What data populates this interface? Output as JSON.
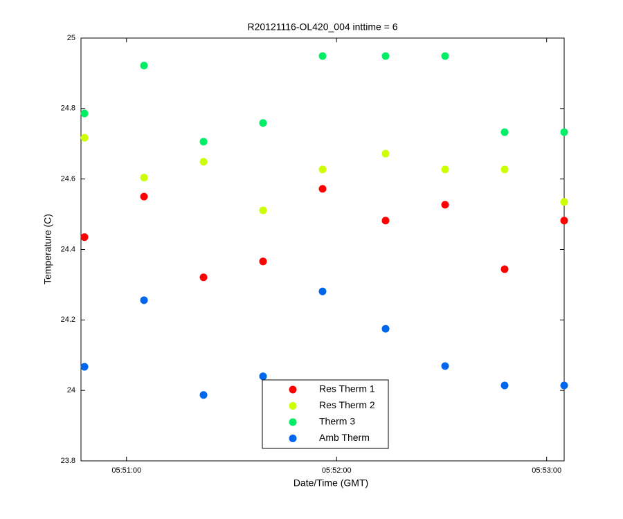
{
  "chart_data": {
    "type": "scatter",
    "title": "R20121116-OL420_004 inttime = 6",
    "x_label": "Date/Time (GMT)",
    "y_label": "Temperature (C)",
    "x": [
      "05:50:48",
      "05:51:05",
      "05:51:22",
      "05:51:39",
      "05:51:56",
      "05:52:14",
      "05:52:31",
      "05:52:48",
      "05:53:05"
    ],
    "series": [
      {
        "name": "Res Therm 1",
        "color": "#ff0000",
        "values": [
          24.435,
          24.55,
          24.321,
          24.366,
          24.572,
          24.482,
          24.527,
          24.344,
          24.482
        ]
      },
      {
        "name": "Res Therm 2",
        "color": "#ccff00",
        "values": [
          24.717,
          24.604,
          24.649,
          24.511,
          24.627,
          24.672,
          24.627,
          24.627,
          24.535
        ]
      },
      {
        "name": "Therm 3",
        "color": "#00ee66",
        "values": [
          24.786,
          24.922,
          24.706,
          24.759,
          24.949,
          24.949,
          24.949,
          24.733,
          24.733
        ]
      },
      {
        "name": "Amb Therm",
        "color": "#0066ee",
        "values": [
          24.067,
          24.256,
          23.987,
          24.04,
          24.281,
          24.175,
          24.069,
          24.014,
          24.014
        ]
      }
    ],
    "xlim": [
      "05:50:47",
      "05:53:05"
    ],
    "xticks": [
      "05:51:00",
      "05:52:00",
      "05:53:00"
    ],
    "ylim": [
      23.8,
      25
    ],
    "yticks": [
      23.8,
      24,
      24.2,
      24.4,
      24.6,
      24.8,
      25
    ],
    "legend": "lower center"
  }
}
